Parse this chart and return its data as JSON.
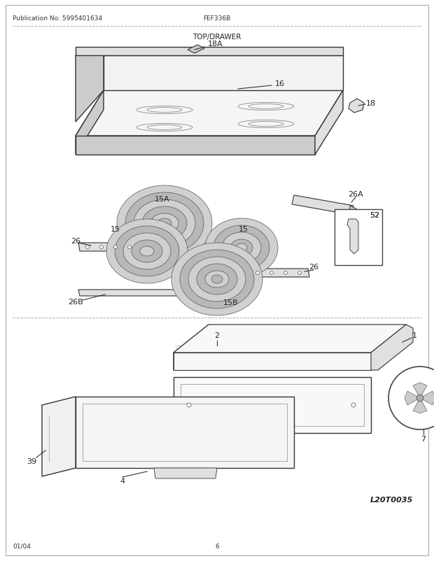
{
  "pub_no": "Publication No: 5995401634",
  "model": "FEF336B",
  "section": "TOP/DRAWER",
  "date": "01/04",
  "page": "6",
  "diagram_id": "L20T0035",
  "bg_color": "#ffffff",
  "text_color": "#222222",
  "fig_width": 6.2,
  "fig_height": 8.03
}
